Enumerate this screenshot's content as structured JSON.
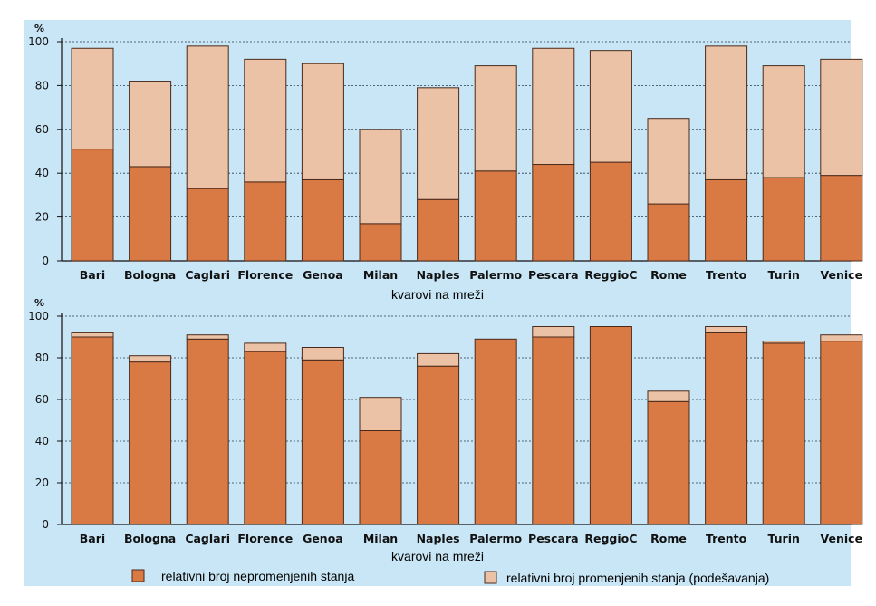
{
  "colors": {
    "background": "#c9e6f6",
    "unchanged": "#d97a45",
    "changed": "#ebc2a5",
    "bar_stroke": "#4a2a1a"
  },
  "chart_data": [
    {
      "type": "bar",
      "stacked": true,
      "unit": "%",
      "ylim": [
        0,
        100
      ],
      "yticks": [
        0,
        20,
        40,
        60,
        80,
        100
      ],
      "grid": true,
      "xlabel": "kvarovi na mreži",
      "categories": [
        "Bari",
        "Bologna",
        "Caglari",
        "Florence",
        "Genoa",
        "Milan",
        "Naples",
        "Palermo",
        "Pescara",
        "ReggioC",
        "Rome",
        "Trento",
        "Turin",
        "Venice"
      ],
      "series": [
        {
          "name": "relativni broj nepromenjenih stanja",
          "values": [
            51,
            43,
            33,
            36,
            37,
            17,
            28,
            41,
            44,
            45,
            26,
            37,
            38,
            39
          ]
        },
        {
          "name": "relativni broj promenjenih stanja (podešavanja)",
          "values": [
            46,
            39,
            65,
            56,
            53,
            43,
            51,
            48,
            53,
            51,
            39,
            61,
            51,
            53
          ]
        }
      ]
    },
    {
      "type": "bar",
      "stacked": true,
      "unit": "%",
      "ylim": [
        0,
        100
      ],
      "yticks": [
        0,
        20,
        40,
        60,
        80,
        100
      ],
      "grid": true,
      "xlabel": "kvarovi na mreži",
      "categories": [
        "Bari",
        "Bologna",
        "Caglari",
        "Florence",
        "Genoa",
        "Milan",
        "Naples",
        "Palermo",
        "Pescara",
        "ReggioC",
        "Rome",
        "Trento",
        "Turin",
        "Venice"
      ],
      "series": [
        {
          "name": "relativni broj nepromenjenih stanja",
          "values": [
            90,
            78,
            89,
            83,
            79,
            45,
            76,
            89,
            90,
            95,
            59,
            92,
            87,
            88
          ]
        },
        {
          "name": "relativni broj promenjenih stanja (podešavanja)",
          "values": [
            2,
            3,
            2,
            4,
            6,
            16,
            6,
            0,
            5,
            0,
            5,
            3,
            1,
            3
          ]
        }
      ]
    }
  ],
  "legend": {
    "placement": "bottom",
    "items": [
      {
        "label": "relativni broj nepromenjenih stanja",
        "color": "#d97a45"
      },
      {
        "label": "relativni broj promenjenih stanja (podešavanja)",
        "color": "#ebc2a5"
      }
    ]
  }
}
